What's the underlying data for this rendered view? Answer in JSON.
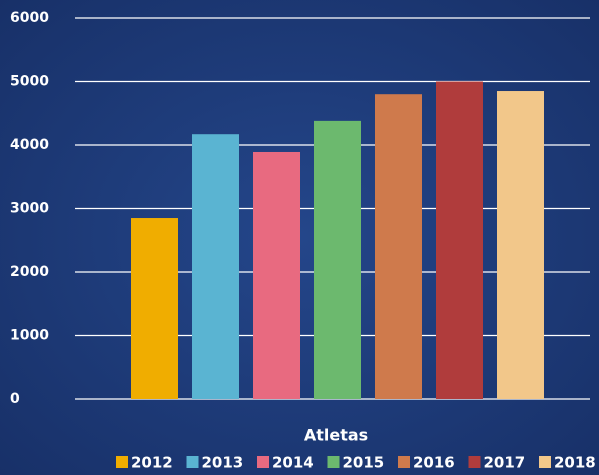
{
  "chart_data": {
    "type": "bar",
    "categories": [
      "Atletas"
    ],
    "series": [
      {
        "name": "2012",
        "color": "#f0ad00",
        "values": [
          2850
        ]
      },
      {
        "name": "2013",
        "color": "#5ab4d2",
        "values": [
          4170
        ]
      },
      {
        "name": "2014",
        "color": "#e86a80",
        "values": [
          3890
        ]
      },
      {
        "name": "2015",
        "color": "#6cb96e",
        "values": [
          4380
        ]
      },
      {
        "name": "2016",
        "color": "#cf7a4c",
        "values": [
          4800
        ]
      },
      {
        "name": "2017",
        "color": "#b03c3c",
        "values": [
          5000
        ]
      },
      {
        "name": "2018",
        "color": "#f2c78a",
        "values": [
          4850
        ]
      }
    ],
    "ylim": [
      0,
      6000
    ],
    "yticks": [
      0,
      1000,
      2000,
      3000,
      4000,
      5000,
      6000
    ],
    "grid": true,
    "legend": "bottom"
  }
}
